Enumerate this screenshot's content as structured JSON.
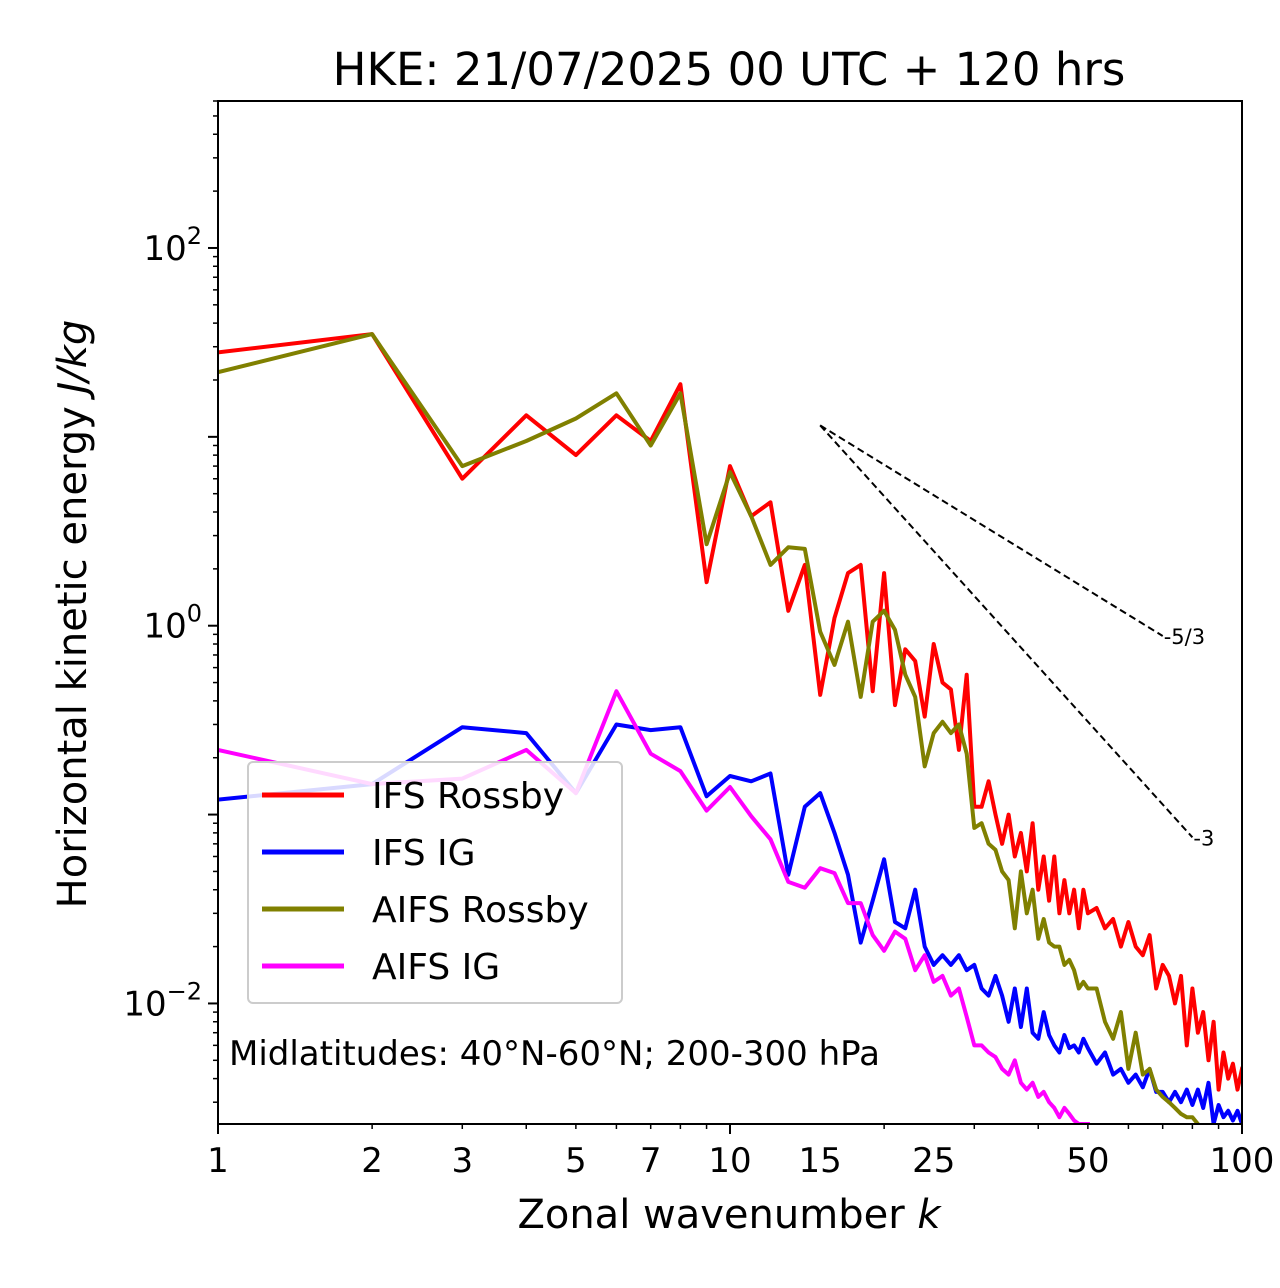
{
  "chart_data": {
    "type": "line",
    "title": "HKE: 21/07/2025 00 UTC + 120 hrs",
    "xlabel_main": "Zonal wavenumber ",
    "xlabel_var": "k",
    "ylabel_main": "Horizontal kinetic energy ",
    "ylabel_var": "J/kg",
    "xscale": "log",
    "yscale": "log",
    "xlim": [
      1,
      100
    ],
    "ylim": [
      0.0023,
      600
    ],
    "xticks": [
      1,
      2,
      3,
      5,
      7,
      10,
      15,
      25,
      50,
      100
    ],
    "xtick_labels": [
      "1",
      "2",
      "3",
      "5",
      "7",
      "10",
      "15",
      "25",
      "50",
      "100"
    ],
    "yticks": [
      {
        "value": 0.01,
        "base": "10",
        "exp": "−2"
      },
      {
        "value": 1,
        "base": "10",
        "exp": "0"
      },
      {
        "value": 100,
        "base": "10",
        "exp": "2"
      }
    ],
    "annotation": "Midlatitudes: 40°N-60°N; 200-300 hPa",
    "legend_position": "center-left",
    "reference_lines": [
      {
        "label": "-5/3",
        "slope": -1.6667,
        "x_start": 15,
        "y_start": 11.5,
        "x_end": 70
      },
      {
        "label": "-3",
        "slope": -3,
        "x_start": 15,
        "y_start": 11.5,
        "x_end": 80
      }
    ],
    "series": [
      {
        "name": "IFS Rossby",
        "color": "#ff0000",
        "points": [
          [
            1,
            28
          ],
          [
            2,
            35
          ],
          [
            3,
            6
          ],
          [
            4,
            13
          ],
          [
            5,
            8
          ],
          [
            6,
            13
          ],
          [
            7,
            9.5
          ],
          [
            8,
            19
          ],
          [
            9,
            1.7
          ],
          [
            10,
            7
          ],
          [
            11,
            3.8
          ],
          [
            12,
            4.5
          ],
          [
            13,
            1.2
          ],
          [
            14,
            2.1
          ],
          [
            15,
            0.43
          ],
          [
            16,
            1.1
          ],
          [
            17,
            1.9
          ],
          [
            18,
            2.1
          ],
          [
            19,
            0.45
          ],
          [
            20,
            1.9
          ],
          [
            21,
            0.38
          ],
          [
            22,
            0.75
          ],
          [
            23,
            0.65
          ],
          [
            24,
            0.33
          ],
          [
            25,
            0.8
          ],
          [
            26,
            0.5
          ],
          [
            27,
            0.46
          ],
          [
            28,
            0.22
          ],
          [
            29,
            0.55
          ],
          [
            30,
            0.11
          ],
          [
            31,
            0.11
          ],
          [
            32,
            0.15
          ],
          [
            33,
            0.1
          ],
          [
            34,
            0.07
          ],
          [
            35,
            0.1
          ],
          [
            36,
            0.06
          ],
          [
            37,
            0.08
          ],
          [
            38,
            0.05
          ],
          [
            39,
            0.09
          ],
          [
            40,
            0.04
          ],
          [
            41,
            0.06
          ],
          [
            42,
            0.035
          ],
          [
            43,
            0.06
          ],
          [
            44,
            0.03
          ],
          [
            45,
            0.045
          ],
          [
            46,
            0.03
          ],
          [
            47,
            0.04
          ],
          [
            48,
            0.025
          ],
          [
            49,
            0.04
          ],
          [
            50,
            0.03
          ],
          [
            52,
            0.032
          ],
          [
            54,
            0.025
          ],
          [
            56,
            0.028
          ],
          [
            58,
            0.02
          ],
          [
            60,
            0.027
          ],
          [
            62,
            0.02
          ],
          [
            64,
            0.018
          ],
          [
            66,
            0.023
          ],
          [
            68,
            0.012
          ],
          [
            70,
            0.016
          ],
          [
            72,
            0.014
          ],
          [
            74,
            0.01
          ],
          [
            76,
            0.014
          ],
          [
            78,
            0.006
          ],
          [
            80,
            0.012
          ],
          [
            82,
            0.007
          ],
          [
            84,
            0.009
          ],
          [
            86,
            0.005
          ],
          [
            88,
            0.008
          ],
          [
            90,
            0.0035
          ],
          [
            92,
            0.0055
          ],
          [
            94,
            0.004
          ],
          [
            96,
            0.0048
          ],
          [
            98,
            0.0035
          ],
          [
            100,
            0.0045
          ]
        ]
      },
      {
        "name": "IFS IG",
        "color": "#0000ff",
        "points": [
          [
            1,
            0.12
          ],
          [
            2,
            0.145
          ],
          [
            3,
            0.29
          ],
          [
            4,
            0.27
          ],
          [
            5,
            0.13
          ],
          [
            6,
            0.3
          ],
          [
            7,
            0.28
          ],
          [
            8,
            0.29
          ],
          [
            9,
            0.125
          ],
          [
            10,
            0.16
          ],
          [
            11,
            0.15
          ],
          [
            12,
            0.165
          ],
          [
            13,
            0.048
          ],
          [
            14,
            0.11
          ],
          [
            15,
            0.13
          ],
          [
            16,
            0.08
          ],
          [
            17,
            0.048
          ],
          [
            18,
            0.021
          ],
          [
            19,
            0.035
          ],
          [
            20,
            0.058
          ],
          [
            21,
            0.027
          ],
          [
            22,
            0.025
          ],
          [
            23,
            0.04
          ],
          [
            24,
            0.02
          ],
          [
            25,
            0.016
          ],
          [
            26,
            0.018
          ],
          [
            27,
            0.016
          ],
          [
            28,
            0.018
          ],
          [
            29,
            0.015
          ],
          [
            30,
            0.016
          ],
          [
            31,
            0.012
          ],
          [
            32,
            0.011
          ],
          [
            33,
            0.014
          ],
          [
            34,
            0.011
          ],
          [
            35,
            0.008
          ],
          [
            36,
            0.012
          ],
          [
            37,
            0.0075
          ],
          [
            38,
            0.012
          ],
          [
            39,
            0.007
          ],
          [
            40,
            0.0065
          ],
          [
            41,
            0.009
          ],
          [
            42,
            0.0068
          ],
          [
            43,
            0.006
          ],
          [
            44,
            0.0055
          ],
          [
            45,
            0.0068
          ],
          [
            46,
            0.0058
          ],
          [
            47,
            0.006
          ],
          [
            48,
            0.0055
          ],
          [
            49,
            0.0065
          ],
          [
            50,
            0.0058
          ],
          [
            52,
            0.0048
          ],
          [
            54,
            0.0055
          ],
          [
            56,
            0.0042
          ],
          [
            58,
            0.0045
          ],
          [
            60,
            0.0038
          ],
          [
            62,
            0.0042
          ],
          [
            64,
            0.0036
          ],
          [
            66,
            0.0045
          ],
          [
            68,
            0.0034
          ],
          [
            70,
            0.0034
          ],
          [
            72,
            0.003
          ],
          [
            74,
            0.0034
          ],
          [
            76,
            0.003
          ],
          [
            78,
            0.0035
          ],
          [
            80,
            0.0029
          ],
          [
            82,
            0.0035
          ],
          [
            84,
            0.0028
          ],
          [
            86,
            0.0038
          ],
          [
            88,
            0.0023
          ],
          [
            90,
            0.0029
          ],
          [
            92,
            0.0025
          ],
          [
            94,
            0.0027
          ],
          [
            96,
            0.0024
          ],
          [
            98,
            0.0027
          ],
          [
            100,
            0.0023
          ]
        ]
      },
      {
        "name": "AIFS Rossby",
        "color": "#808000",
        "points": [
          [
            1,
            22
          ],
          [
            2,
            35
          ],
          [
            3,
            7
          ],
          [
            4,
            9.5
          ],
          [
            5,
            12.5
          ],
          [
            6,
            17
          ],
          [
            7,
            9
          ],
          [
            8,
            17
          ],
          [
            9,
            2.7
          ],
          [
            10,
            6.5
          ],
          [
            11,
            3.8
          ],
          [
            12,
            2.1
          ],
          [
            13,
            2.6
          ],
          [
            14,
            2.55
          ],
          [
            15,
            0.93
          ],
          [
            16,
            0.62
          ],
          [
            17,
            1.05
          ],
          [
            18,
            0.42
          ],
          [
            19,
            1.05
          ],
          [
            20,
            1.2
          ],
          [
            21,
            0.95
          ],
          [
            22,
            0.55
          ],
          [
            23,
            0.42
          ],
          [
            24,
            0.18
          ],
          [
            25,
            0.27
          ],
          [
            26,
            0.31
          ],
          [
            27,
            0.27
          ],
          [
            28,
            0.3
          ],
          [
            29,
            0.21
          ],
          [
            30,
            0.085
          ],
          [
            31,
            0.09
          ],
          [
            32,
            0.07
          ],
          [
            33,
            0.065
          ],
          [
            34,
            0.05
          ],
          [
            35,
            0.045
          ],
          [
            36,
            0.025
          ],
          [
            37,
            0.05
          ],
          [
            38,
            0.03
          ],
          [
            39,
            0.04
          ],
          [
            40,
            0.022
          ],
          [
            41,
            0.028
          ],
          [
            42,
            0.021
          ],
          [
            43,
            0.02
          ],
          [
            44,
            0.02
          ],
          [
            45,
            0.016
          ],
          [
            46,
            0.017
          ],
          [
            47,
            0.015
          ],
          [
            48,
            0.012
          ],
          [
            49,
            0.013
          ],
          [
            50,
            0.012
          ],
          [
            52,
            0.012
          ],
          [
            54,
            0.008
          ],
          [
            56,
            0.0065
          ],
          [
            58,
            0.009
          ],
          [
            60,
            0.0045
          ],
          [
            62,
            0.007
          ],
          [
            64,
            0.0042
          ],
          [
            66,
            0.0045
          ],
          [
            68,
            0.0035
          ],
          [
            70,
            0.0032
          ],
          [
            72,
            0.003
          ],
          [
            74,
            0.0028
          ],
          [
            76,
            0.0026
          ],
          [
            78,
            0.0025
          ],
          [
            80,
            0.0025
          ],
          [
            82,
            0.0023
          ]
        ]
      },
      {
        "name": "AIFS IG",
        "color": "#ff00ff",
        "points": [
          [
            1,
            0.22
          ],
          [
            2,
            0.145
          ],
          [
            3,
            0.155
          ],
          [
            4,
            0.22
          ],
          [
            5,
            0.13
          ],
          [
            6,
            0.45
          ],
          [
            7,
            0.21
          ],
          [
            8,
            0.17
          ],
          [
            9,
            0.105
          ],
          [
            10,
            0.14
          ],
          [
            11,
            0.098
          ],
          [
            12,
            0.074
          ],
          [
            13,
            0.044
          ],
          [
            14,
            0.041
          ],
          [
            15,
            0.052
          ],
          [
            16,
            0.049
          ],
          [
            17,
            0.034
          ],
          [
            18,
            0.034
          ],
          [
            19,
            0.023
          ],
          [
            20,
            0.019
          ],
          [
            21,
            0.024
          ],
          [
            22,
            0.022
          ],
          [
            23,
            0.015
          ],
          [
            24,
            0.018
          ],
          [
            25,
            0.013
          ],
          [
            26,
            0.014
          ],
          [
            27,
            0.011
          ],
          [
            28,
            0.012
          ],
          [
            29,
            0.0085
          ],
          [
            30,
            0.006
          ],
          [
            31,
            0.006
          ],
          [
            32,
            0.0055
          ],
          [
            33,
            0.0052
          ],
          [
            34,
            0.0045
          ],
          [
            35,
            0.0042
          ],
          [
            36,
            0.005
          ],
          [
            37,
            0.0038
          ],
          [
            38,
            0.0035
          ],
          [
            39,
            0.0038
          ],
          [
            40,
            0.0032
          ],
          [
            41,
            0.0034
          ],
          [
            42,
            0.003
          ],
          [
            43,
            0.0028
          ],
          [
            44,
            0.0025
          ],
          [
            45,
            0.0028
          ],
          [
            46,
            0.0026
          ],
          [
            47,
            0.0024
          ],
          [
            48,
            0.0023
          ],
          [
            50,
            0.0023
          ]
        ]
      }
    ]
  }
}
